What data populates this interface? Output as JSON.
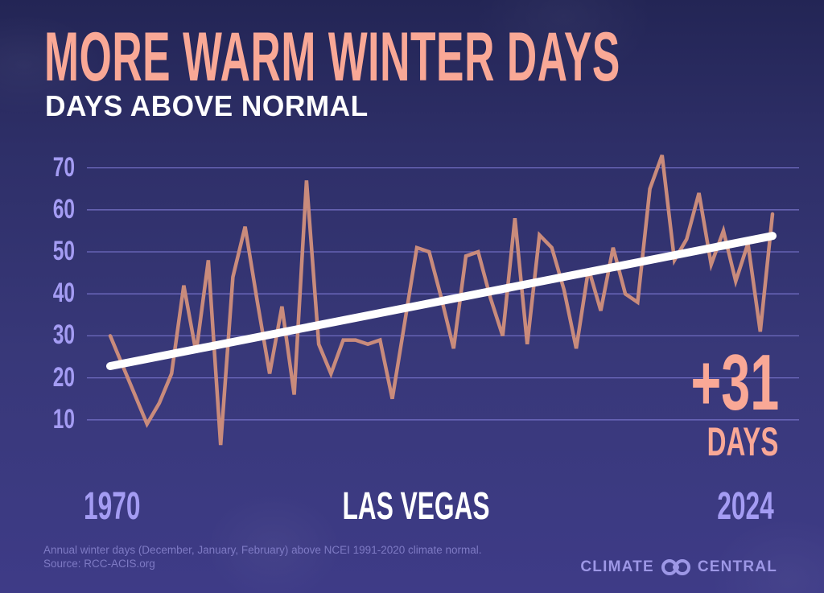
{
  "header": {
    "title": "MORE WARM WINTER DAYS",
    "subtitle": "DAYS ABOVE NORMAL"
  },
  "annotation": {
    "change_value": "+31",
    "change_unit": "DAYS"
  },
  "axis": {
    "x_start_label": "1970",
    "x_end_label": "2024",
    "location_label": "LAS VEGAS",
    "y_ticks": [
      "70",
      "60",
      "50",
      "40",
      "30",
      "20",
      "10"
    ]
  },
  "footer": {
    "note_line1": "Annual winter days (December, January, February) above NCEI 1991-2020 climate normal.",
    "note_line2": "Source: RCC-ACIS.org",
    "brand_left": "CLIMATE",
    "brand_right": "CENTRAL",
    "brand_logo_icon": "climate-central-logo-icon"
  },
  "colors": {
    "title": "#f9a896",
    "subtitle": "#ffffff",
    "axis_labels": "#a49cf3",
    "gridline": "#6f6bbf",
    "data_line": "#c98b7c",
    "trend_line": "#ffffff",
    "background_top": "#232555",
    "background_bottom": "#3e3b87"
  },
  "chart_data": {
    "type": "line",
    "title": "MORE WARM WINTER DAYS",
    "subtitle": "DAYS ABOVE NORMAL",
    "xlabel": "",
    "ylabel": "Days above normal",
    "location": "LAS VEGAS",
    "x_range": [
      1970,
      2024
    ],
    "ylim": [
      0,
      75
    ],
    "y_ticks": [
      10,
      20,
      30,
      40,
      50,
      60,
      70
    ],
    "grid": true,
    "legend": "none",
    "x": [
      1970,
      1971,
      1972,
      1973,
      1974,
      1975,
      1976,
      1977,
      1978,
      1979,
      1980,
      1981,
      1982,
      1983,
      1984,
      1985,
      1986,
      1987,
      1988,
      1989,
      1990,
      1991,
      1992,
      1993,
      1994,
      1995,
      1996,
      1997,
      1998,
      1999,
      2000,
      2001,
      2002,
      2003,
      2004,
      2005,
      2006,
      2007,
      2008,
      2009,
      2010,
      2011,
      2012,
      2013,
      2014,
      2015,
      2016,
      2017,
      2018,
      2019,
      2020,
      2021,
      2022,
      2023,
      2024
    ],
    "series": [
      {
        "name": "Winter days above normal",
        "values": [
          30,
          23,
          16,
          9,
          14,
          21,
          42,
          26,
          48,
          4,
          44,
          56,
          38,
          21,
          37,
          16,
          67,
          28,
          21,
          29,
          29,
          28,
          29,
          15,
          33,
          51,
          50,
          39,
          27,
          49,
          50,
          39,
          30,
          58,
          28,
          54,
          51,
          41,
          27,
          46,
          36,
          51,
          40,
          38,
          65,
          73,
          48,
          53,
          64,
          47,
          55,
          43,
          52,
          31,
          59
        ]
      },
      {
        "name": "Trend",
        "type": "linear",
        "start": {
          "x": 1970,
          "y": 22.8
        },
        "end": {
          "x": 2024,
          "y": 53.8
        }
      }
    ],
    "annotations": [
      {
        "text": "+31 DAYS",
        "position": "lower-right"
      }
    ]
  }
}
